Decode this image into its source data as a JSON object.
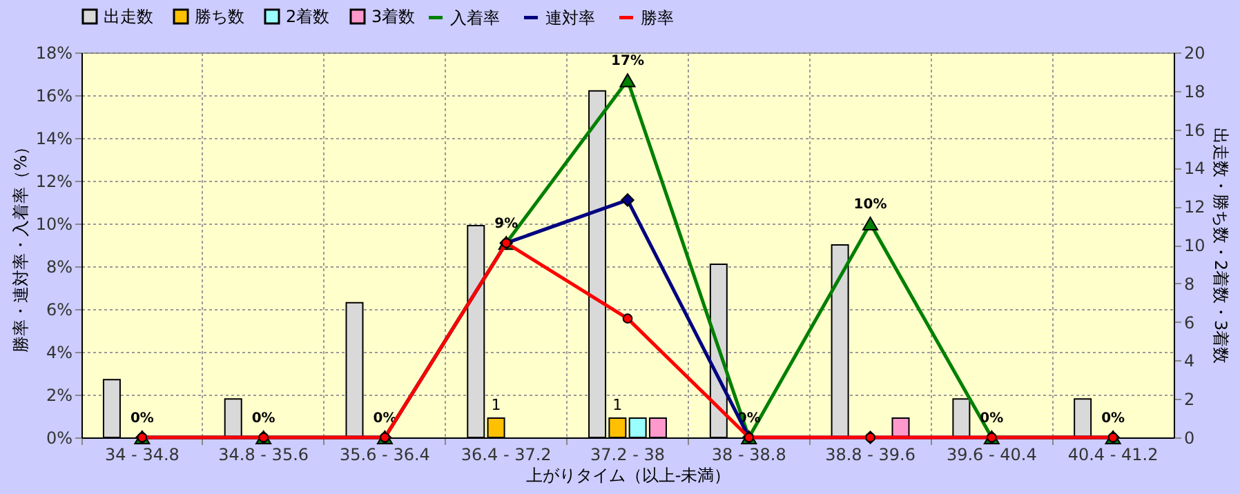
{
  "chart_data": {
    "type": "bar",
    "xlabel": "上がりタイム（以上-未満）",
    "ylabel": "勝率・連対率・入着率（%）",
    "y2label": "出走数・勝ち数・2着数・3着数",
    "categories": [
      "34 - 34.8",
      "34.8 - 35.6",
      "35.6 - 36.4",
      "36.4 - 37.2",
      "37.2 - 38",
      "38 - 38.8",
      "38.8 - 39.6",
      "39.6 - 40.4",
      "40.4 - 41.2"
    ],
    "series": [
      {
        "name": "出走数",
        "type": "bar",
        "axis": "y2",
        "color": "#d9d9d9",
        "values": [
          3,
          2,
          7,
          11,
          18,
          9,
          10,
          2,
          2
        ]
      },
      {
        "name": "勝ち数",
        "type": "bar",
        "axis": "y2",
        "color": "#ffc000",
        "values": [
          0,
          0,
          0,
          1,
          1,
          0,
          0,
          0,
          0
        ],
        "value_labels": [
          null,
          null,
          null,
          "1",
          "1",
          null,
          null,
          null,
          null
        ]
      },
      {
        "name": "2着数",
        "type": "bar",
        "axis": "y2",
        "color": "#99ffff",
        "values": [
          0,
          0,
          0,
          0,
          1,
          0,
          0,
          0,
          0
        ]
      },
      {
        "name": "3着数",
        "type": "bar",
        "axis": "y2",
        "color": "#ff99cc",
        "values": [
          0,
          0,
          0,
          0,
          1,
          0,
          1,
          0,
          0
        ]
      },
      {
        "name": "入着率",
        "type": "line",
        "color": "#008000",
        "marker": "triangle",
        "line_style": "solid",
        "values": [
          0,
          0,
          0,
          9.09,
          16.7,
          0,
          10,
          0,
          0
        ],
        "value_labels": [
          "0%",
          "0%",
          "0%",
          "9%",
          "17%",
          "0%",
          "10%",
          "0%",
          "0%"
        ]
      },
      {
        "name": "連対率",
        "type": "line",
        "color": "#000080",
        "marker": "diamond",
        "line_style": "solid",
        "values": [
          0,
          0,
          0,
          9.09,
          11.1,
          0,
          0,
          0,
          0
        ]
      },
      {
        "name": "勝率",
        "type": "line",
        "color": "#ff0000",
        "marker": "circle",
        "line_style": "solid",
        "values": [
          0,
          0,
          0,
          9.09,
          5.56,
          0,
          0,
          0,
          0
        ]
      }
    ],
    "ylim": [
      0,
      18
    ],
    "yticks": [
      {
        "value": 0,
        "label": "0%"
      },
      {
        "value": 2,
        "label": "2%"
      },
      {
        "value": 4,
        "label": "4%"
      },
      {
        "value": 6,
        "label": "6%"
      },
      {
        "value": 8,
        "label": "8%"
      },
      {
        "value": 10,
        "label": "10%"
      },
      {
        "value": 12,
        "label": "12%"
      },
      {
        "value": 14,
        "label": "14%"
      },
      {
        "value": 16,
        "label": "16%"
      },
      {
        "value": 18,
        "label": "18%"
      }
    ],
    "y2lim": [
      0,
      20
    ],
    "y2ticks": [
      0,
      2,
      4,
      6,
      8,
      10,
      12,
      14,
      16,
      18,
      20
    ],
    "grid": true,
    "legend": "top"
  }
}
